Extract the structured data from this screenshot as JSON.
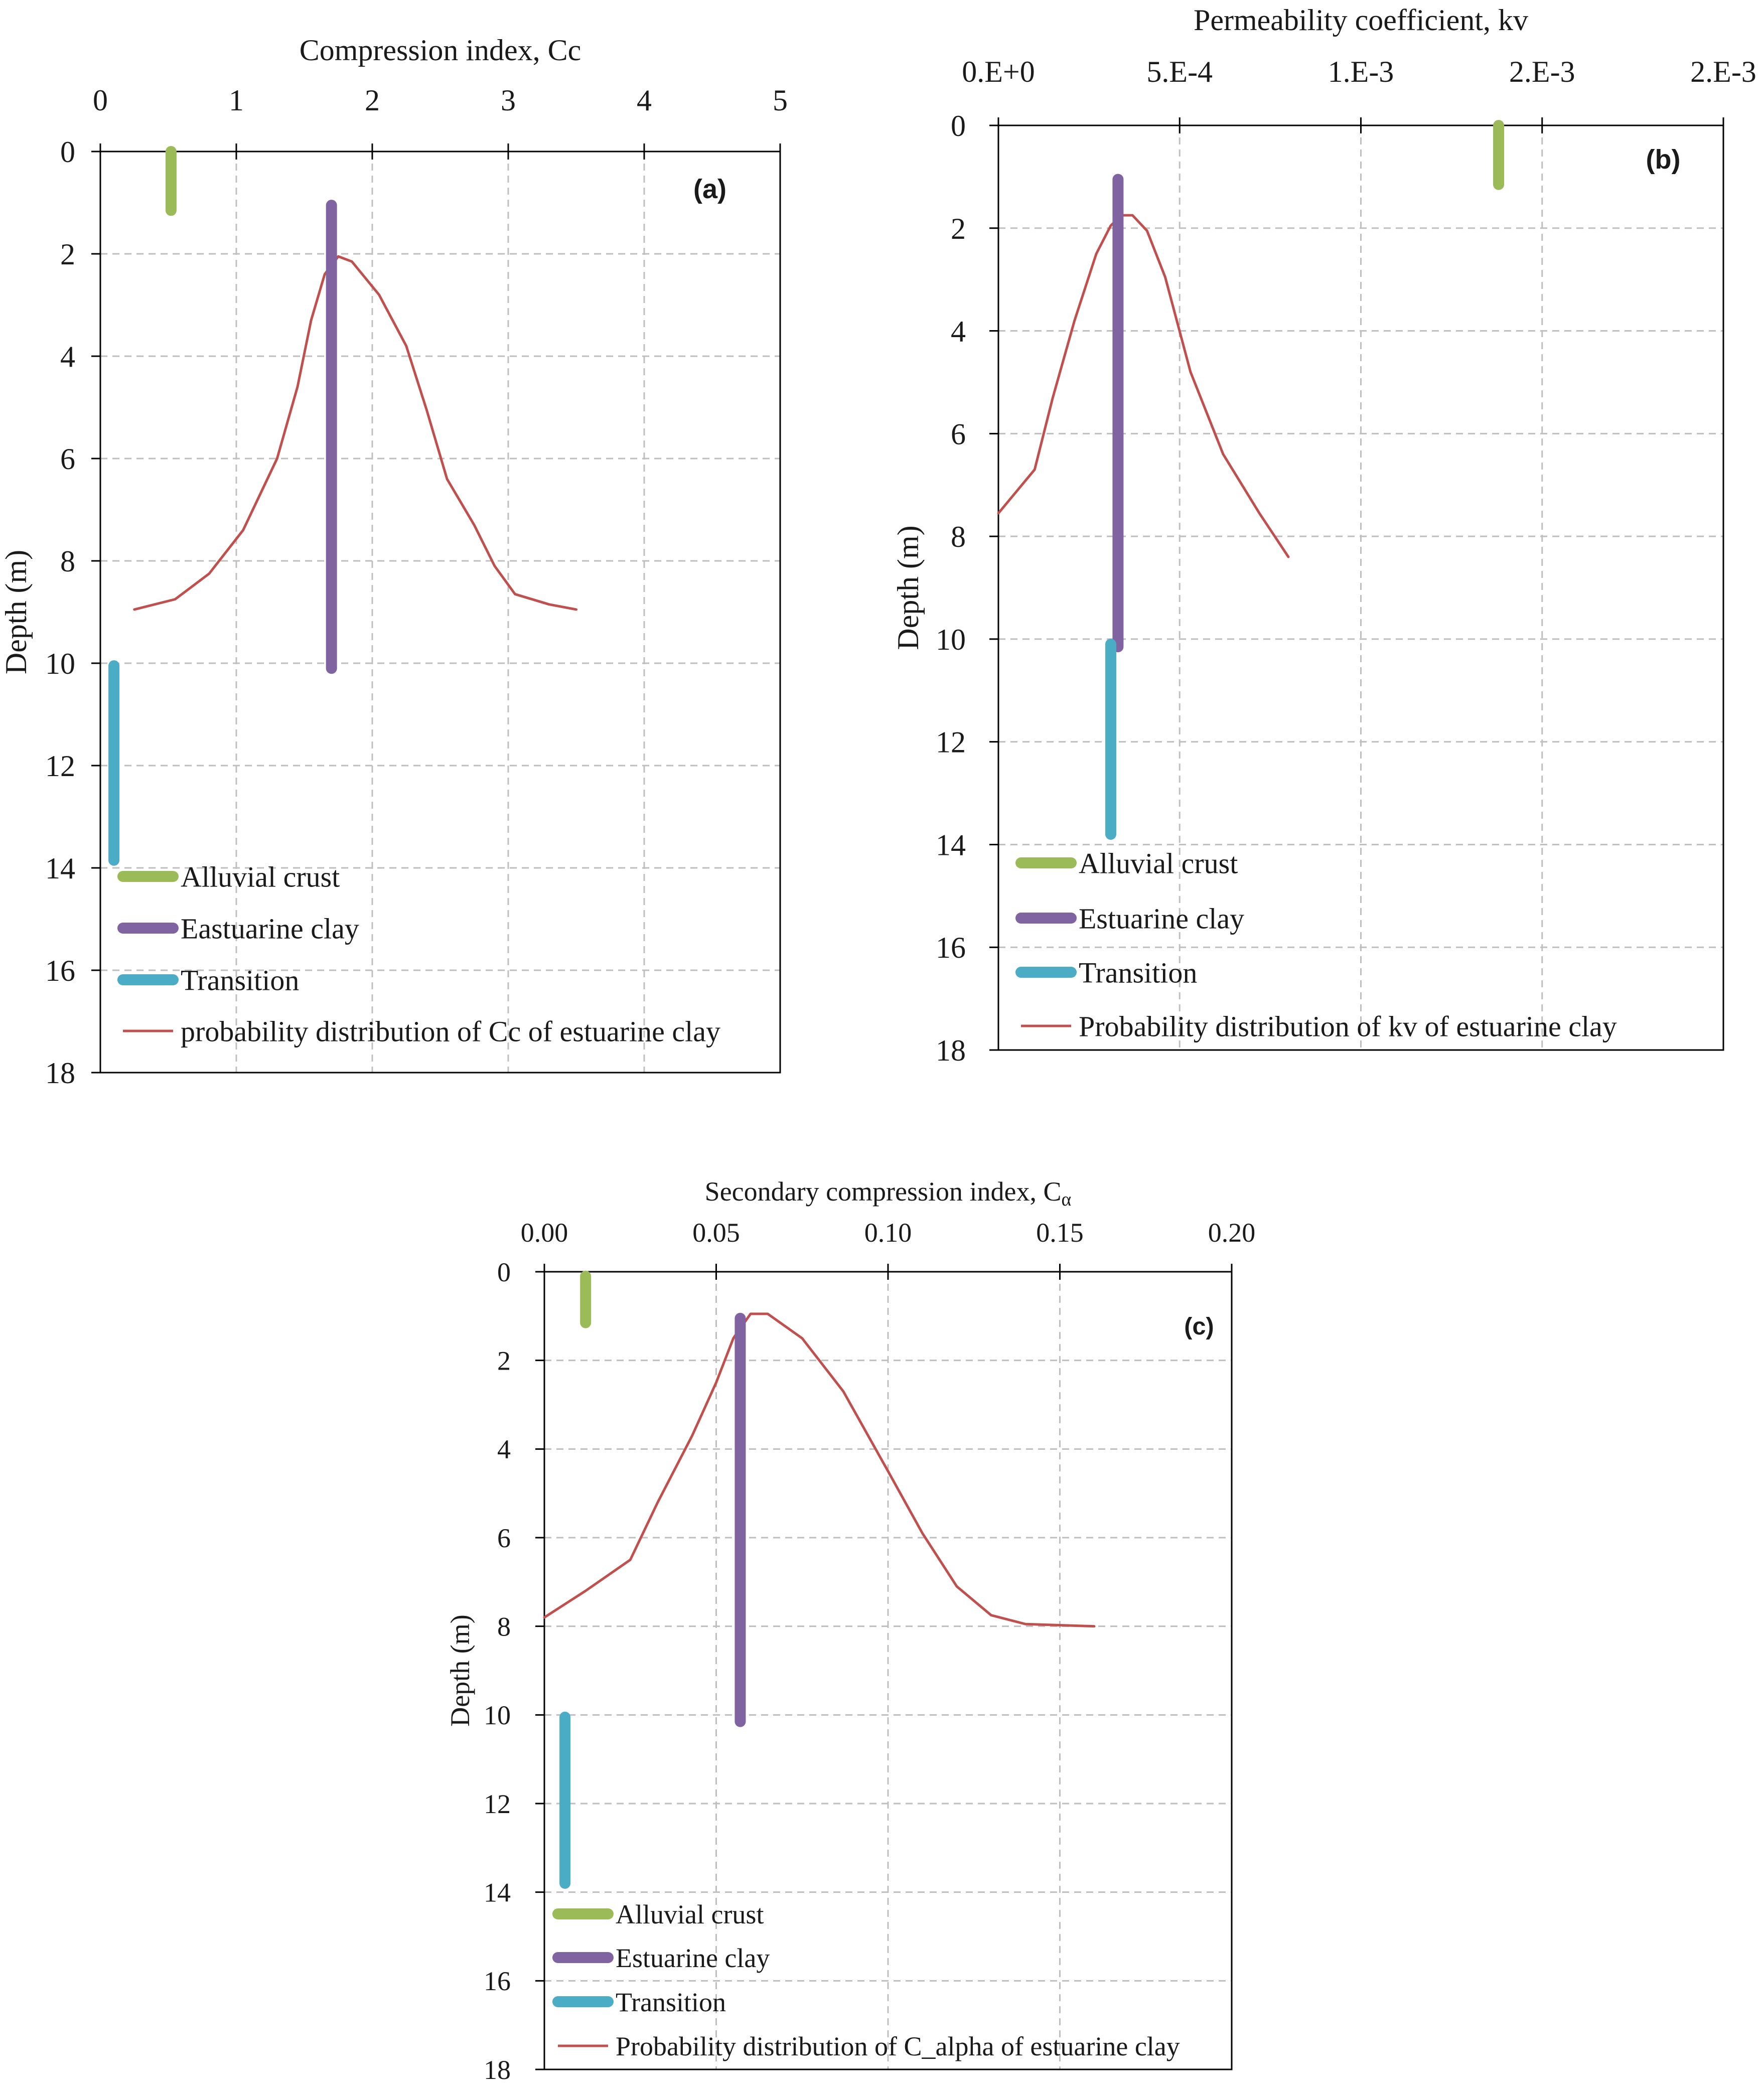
{
  "colors": {
    "alluvial": "#9bbb59",
    "estuarine": "#8064a2",
    "transition": "#4bacc6",
    "probability": "#c0504d",
    "grid": "#bfbfbf",
    "axis": "#000000"
  },
  "chart_data": [
    {
      "id": "a",
      "type": "line",
      "panel_label": "(a)",
      "title": "",
      "xlabel": "Compression  index, Cc",
      "ylabel": "Depth (m)",
      "xlim": [
        0,
        5
      ],
      "ylim": [
        0,
        18
      ],
      "y_inverted": true,
      "x_axis_position": "top",
      "xticks": [
        0,
        1,
        2,
        3,
        4,
        5
      ],
      "xtick_labels": [
        "0",
        "1",
        "2",
        "3",
        "4",
        "5"
      ],
      "yticks": [
        0,
        2,
        4,
        6,
        8,
        10,
        12,
        14,
        16,
        18
      ],
      "ytick_labels": [
        "0",
        "2",
        "4",
        "6",
        "8",
        "10",
        "12",
        "14",
        "16",
        "18"
      ],
      "grid": true,
      "legend_position": "bottom-left",
      "layers": [
        {
          "name": "Alluvial crust",
          "color_key": "alluvial",
          "x": 0.52,
          "depth_from": 0,
          "depth_to": 1.15
        },
        {
          "name": "Eastuarine clay",
          "color_key": "estuarine",
          "x": 1.7,
          "depth_from": 1.05,
          "depth_to": 10.1
        },
        {
          "name": "Transition",
          "color_key": "transition",
          "x": 0.1,
          "depth_from": 10.05,
          "depth_to": 13.85
        }
      ],
      "distribution": {
        "name": "probability distribution of Cc of estuarine clay",
        "x": [
          0.25,
          0.55,
          0.8,
          1.05,
          1.3,
          1.45,
          1.55,
          1.65,
          1.75,
          1.85,
          2.05,
          2.25,
          2.4,
          2.55,
          2.75,
          2.9,
          3.05,
          3.3,
          3.5
        ],
        "y": [
          8.95,
          8.75,
          8.25,
          7.4,
          6.0,
          4.6,
          3.3,
          2.4,
          2.05,
          2.15,
          2.8,
          3.8,
          5.05,
          6.4,
          7.3,
          8.1,
          8.65,
          8.85,
          8.95
        ]
      }
    },
    {
      "id": "b",
      "type": "line",
      "panel_label": "(b)",
      "title": "",
      "xlabel": "Permeability  coefficient,  kv",
      "ylabel": "Depth (m)",
      "xlim": [
        0,
        0.002
      ],
      "ylim": [
        0,
        18
      ],
      "y_inverted": true,
      "x_axis_position": "top",
      "xticks": [
        0,
        0.0005,
        0.001,
        0.0015,
        0.002
      ],
      "xtick_labels": [
        "0.E+0",
        "5.E-4",
        "1.E-3",
        "2.E-3",
        "2.E-3"
      ],
      "yticks": [
        0,
        2,
        4,
        6,
        8,
        10,
        12,
        14,
        16,
        18
      ],
      "ytick_labels": [
        "0",
        "2",
        "4",
        "6",
        "8",
        "10",
        "12",
        "14",
        "16",
        "18"
      ],
      "grid": true,
      "legend_position": "bottom-left",
      "layers": [
        {
          "name": "Alluvial crust",
          "color_key": "alluvial",
          "x": 0.00138,
          "depth_from": 0,
          "depth_to": 1.15
        },
        {
          "name": "Estuarine clay",
          "color_key": "estuarine",
          "x": 0.00033,
          "depth_from": 1.05,
          "depth_to": 10.15
        },
        {
          "name": "Transition",
          "color_key": "transition",
          "x": 0.00031,
          "depth_from": 10.1,
          "depth_to": 13.8
        }
      ],
      "distribution": {
        "name": "Probability distribution of kv of estuarine clay",
        "x": [
          0.0,
          0.0001,
          0.00015,
          0.00021,
          0.00027,
          0.00031,
          0.00034,
          0.00037,
          0.00041,
          0.00046,
          0.00053,
          0.00062,
          0.00072,
          0.0008
        ],
        "y": [
          7.55,
          6.7,
          5.3,
          3.8,
          2.5,
          1.95,
          1.75,
          1.75,
          2.05,
          2.95,
          4.8,
          6.4,
          7.55,
          8.4
        ]
      }
    },
    {
      "id": "c",
      "type": "line",
      "panel_label": "(c)",
      "title": "",
      "xlabel": "Secondary  compression  index,  C",
      "xlabel_subscript": "α",
      "ylabel": "Depth (m)",
      "xlim": [
        0,
        0.2
      ],
      "ylim": [
        0,
        18
      ],
      "y_inverted": true,
      "x_axis_position": "top",
      "xticks": [
        0,
        0.05,
        0.1,
        0.15,
        0.2
      ],
      "xtick_labels": [
        "0.00",
        "0.05",
        "0.10",
        "0.15",
        "0.20"
      ],
      "yticks": [
        0,
        2,
        4,
        6,
        8,
        10,
        12,
        14,
        16,
        18
      ],
      "ytick_labels": [
        "0",
        "2",
        "4",
        "6",
        "8",
        "10",
        "12",
        "14",
        "16",
        "18"
      ],
      "grid": true,
      "legend_position": "bottom-left",
      "layers": [
        {
          "name": "Alluvial crust",
          "color_key": "alluvial",
          "x": 0.012,
          "depth_from": 0.1,
          "depth_to": 1.15
        },
        {
          "name": "Estuarine clay",
          "color_key": "estuarine",
          "x": 0.057,
          "depth_from": 1.05,
          "depth_to": 10.15
        },
        {
          "name": "Transition",
          "color_key": "transition",
          "x": 0.006,
          "depth_from": 10.05,
          "depth_to": 13.8
        }
      ],
      "distribution": {
        "name": "Probability distribution of C_alpha of estuarine clay",
        "x": [
          0.0,
          0.012,
          0.025,
          0.033,
          0.043,
          0.05,
          0.055,
          0.06,
          0.065,
          0.075,
          0.087,
          0.1,
          0.11,
          0.12,
          0.13,
          0.14,
          0.16
        ],
        "y": [
          7.8,
          7.2,
          6.5,
          5.2,
          3.7,
          2.5,
          1.5,
          0.95,
          0.95,
          1.5,
          2.7,
          4.5,
          5.9,
          7.1,
          7.75,
          7.95,
          8.0
        ]
      }
    }
  ]
}
